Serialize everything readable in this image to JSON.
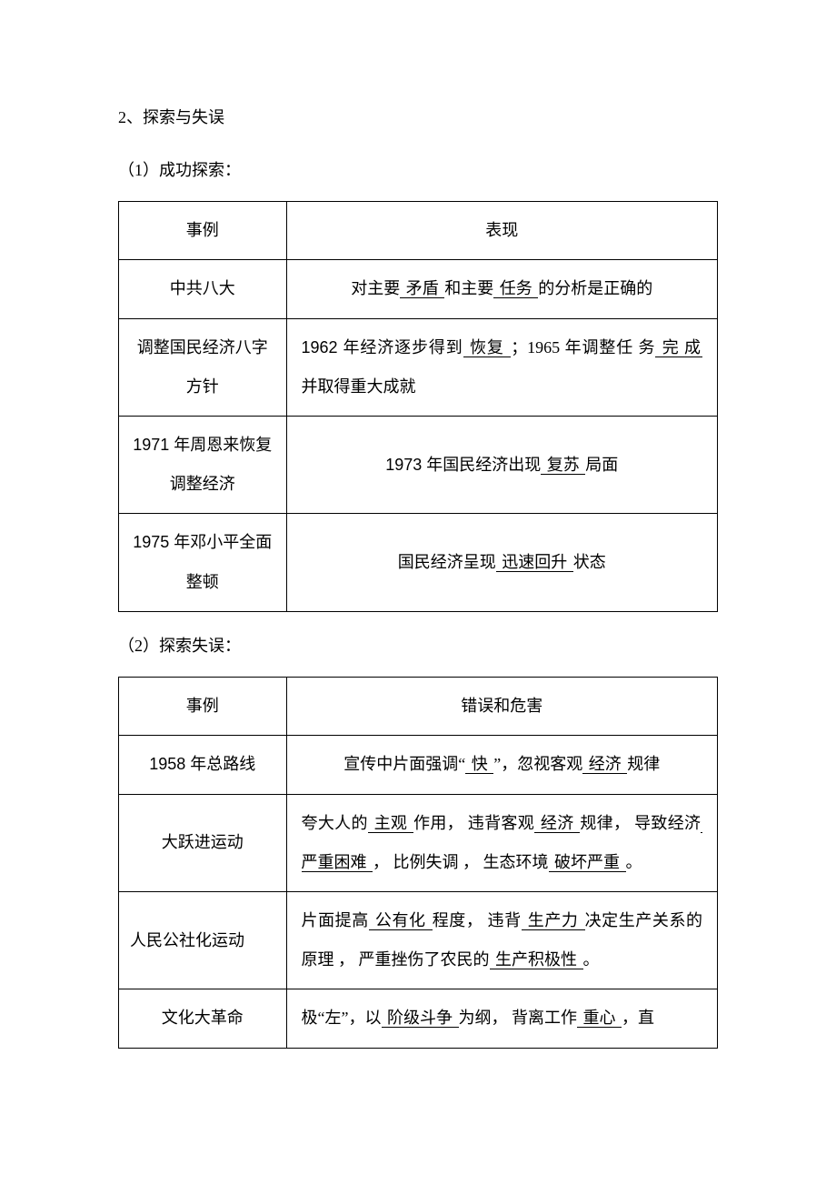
{
  "heading": "2、探索与失误",
  "sub1": "（1）成功探索：",
  "sub2": "（2）探索失误：",
  "t1": {
    "h_left": "事例",
    "h_right": "表现",
    "r1_left": "中共八大",
    "r1_p1": "对主要",
    "r1_u1": " 矛盾 ",
    "r1_p2": "和主要",
    "r1_u2": " 任务 ",
    "r1_p3": "的分析是正确的",
    "r2_left": "调整国民经济八字方针",
    "r2_p1": "1962 年经济逐步得到",
    "r2_u1": " 恢复 ",
    "r2_p2": "；1965 年调整任 务",
    "r2_u2": " 完 成 ",
    "r2_p3": "并取得重大成就",
    "r3_left": "1971 年周恩来恢复调整经济",
    "r3_p1": "1973 年国民经济出现",
    "r3_u1": " 复苏 ",
    "r3_p2": "局面",
    "r4_left": "1975 年邓小平全面整顿",
    "r4_p1": "国民经济呈现",
    "r4_u1": " 迅速回升 ",
    "r4_p2": "状态"
  },
  "t2": {
    "h_left": "事例",
    "h_right": "错误和危害",
    "r1_left": "1958 年总路线",
    "r1_p1": "宣传中片面强调“",
    "r1_u1": " 快 ",
    "r1_p2": "”，忽视客观",
    "r1_u2": " 经济 ",
    "r1_p3": "规律",
    "r2_left": "大跃进运动",
    "r2_p1": "夸大人的",
    "r2_u1": " 主观 ",
    "r2_p2": "作用， 违背客观",
    "r2_u2": " 经济 ",
    "r2_p3": "规律， 导致经济",
    "r2_u3": " 严重困难  ",
    "r2_p4": "， 比例失调 ， 生态环境",
    "r2_u4": " 破坏严重  ",
    "r2_p5": "。",
    "r3_left": "人民公社化运动",
    "r3_p1": "片面提高",
    "r3_u1": " 公有化 ",
    "r3_p2": "程度， 违背",
    "r3_u2": " 生产力 ",
    "r3_p3": "决定生产关系的原理 ， 严重挫伤了农民的",
    "r3_u3": " 生产积极性  ",
    "r3_p4": "。",
    "r4_left": "文化大革命",
    "r4_p1": "极“左”，以",
    "r4_u1": " 阶级斗争 ",
    "r4_p2": "为纲， 背离工作",
    "r4_u2": " 重心 ",
    "r4_p3": "，直"
  }
}
